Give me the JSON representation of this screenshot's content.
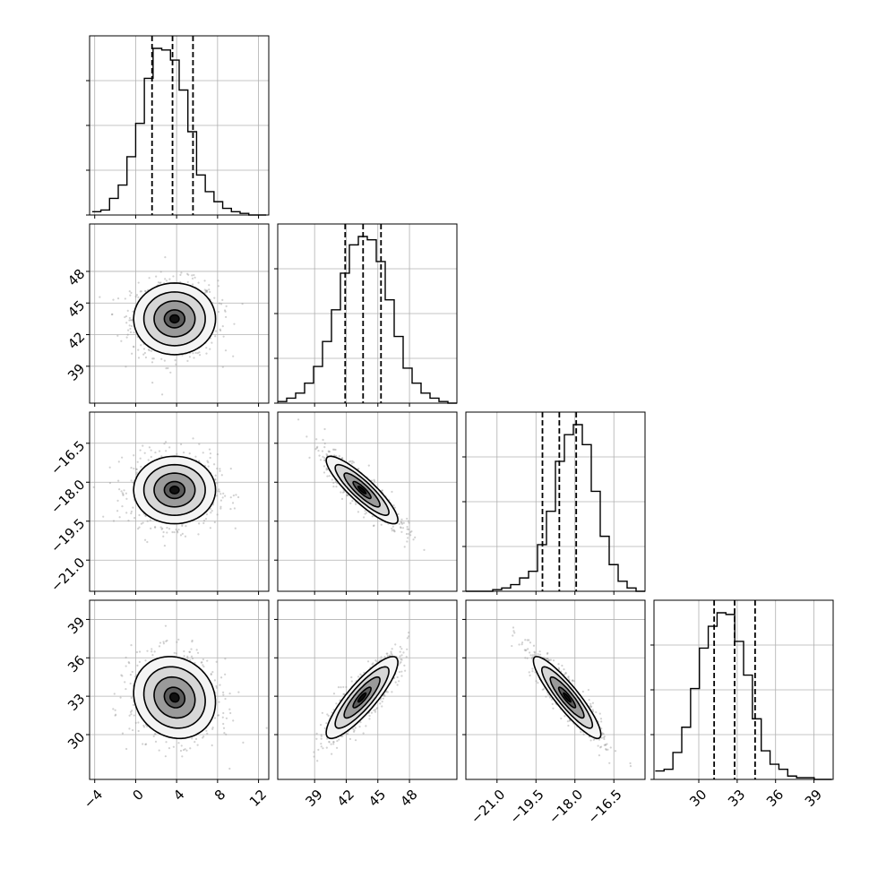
{
  "chart_data": {
    "type": "corner",
    "grid": true,
    "parameters": [
      {
        "range": [
          -4.5,
          13
        ],
        "ticks": [
          -4,
          0,
          4,
          8,
          12
        ],
        "quantiles": [
          1.6,
          3.6,
          5.6
        ]
      },
      {
        "range": [
          35.5,
          52.5
        ],
        "ticks": [
          39,
          42,
          45,
          48
        ],
        "quantiles": [
          41.9,
          43.6,
          45.3
        ]
      },
      {
        "range": [
          -22.2,
          -15.3
        ],
        "ticks": [
          -21.0,
          -19.5,
          -18.0,
          -16.5
        ],
        "quantiles": [
          -19.25,
          -18.6,
          -17.95
        ]
      },
      {
        "range": [
          26.5,
          40.5
        ],
        "ticks": [
          30,
          33,
          36,
          39
        ],
        "quantiles": [
          31.2,
          32.8,
          34.4
        ]
      }
    ],
    "tick_labels": {
      "p0": [
        "−4",
        "0",
        "4",
        "8",
        "12"
      ],
      "p1": [
        "39",
        "42",
        "45",
        "48"
      ],
      "p2": [
        "−21.0",
        "−19.5",
        "−18.0",
        "−16.5"
      ],
      "p3": [
        "30",
        "33",
        "36",
        "39"
      ]
    },
    "histograms": [
      {
        "bin_start": -4.25,
        "bin_width": 0.85,
        "counts": [
          2,
          3,
          10,
          18,
          35,
          55,
          82,
          100,
          99,
          93,
          75,
          50,
          24,
          14,
          8,
          4,
          2,
          1,
          0,
          0
        ]
      },
      {
        "bin_start": 35.5,
        "bin_width": 0.85,
        "counts": [
          1,
          3,
          6,
          12,
          22,
          37,
          56,
          78,
          95,
          100,
          98,
          85,
          62,
          40,
          21,
          12,
          6,
          3,
          1,
          0
        ]
      },
      {
        "bin_start": -22.2,
        "bin_width": 0.345,
        "counts": [
          0,
          0,
          0,
          1,
          2,
          4,
          8,
          12,
          28,
          48,
          78,
          94,
          100,
          88,
          60,
          33,
          16,
          6,
          2,
          0
        ]
      },
      {
        "bin_start": 26.6,
        "bin_width": 0.69,
        "counts": [
          5,
          6,
          16,
          31,
          54,
          78,
          91,
          99,
          98,
          82,
          62,
          36,
          17,
          9,
          6,
          2,
          1,
          1,
          0,
          0
        ]
      }
    ],
    "pairs": [
      {
        "x": 0,
        "y": 1,
        "mean": [
          3.8,
          43.5
        ],
        "sd": [
          2.0,
          1.7
        ],
        "corr": 0.0
      },
      {
        "x": 0,
        "y": 2,
        "mean": [
          3.8,
          -18.3
        ],
        "sd": [
          2.0,
          0.65
        ],
        "corr": 0.0
      },
      {
        "x": 1,
        "y": 2,
        "mean": [
          43.5,
          -18.3
        ],
        "sd": [
          1.7,
          0.65
        ],
        "corr": -0.88
      },
      {
        "x": 0,
        "y": 3,
        "mean": [
          3.8,
          32.9
        ],
        "sd": [
          2.0,
          1.6
        ],
        "corr": -0.12
      },
      {
        "x": 1,
        "y": 3,
        "mean": [
          43.5,
          32.9
        ],
        "sd": [
          1.7,
          1.6
        ],
        "corr": 0.86
      },
      {
        "x": 2,
        "y": 3,
        "mean": [
          -18.3,
          32.9
        ],
        "sd": [
          0.65,
          1.6
        ],
        "corr": -0.9
      }
    ],
    "colors": {
      "line": "#000000",
      "grid": "#b0b0b0",
      "scatter": "#9a9a9a"
    }
  }
}
